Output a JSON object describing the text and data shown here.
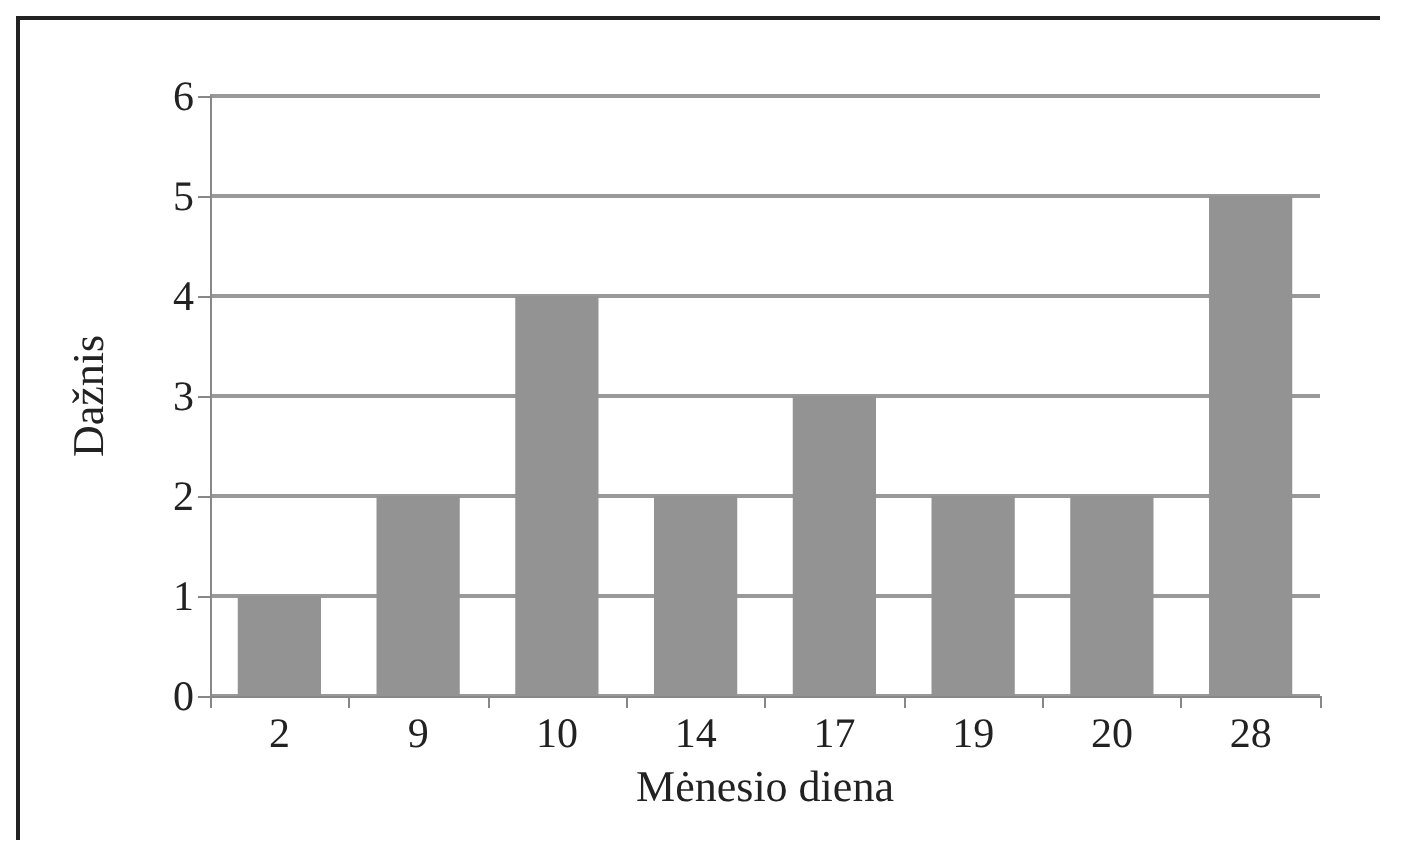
{
  "chart_data": {
    "type": "bar",
    "xlabel": "Mėnesio diena",
    "ylabel": "Dažnis",
    "categories": [
      "2",
      "9",
      "10",
      "14",
      "17",
      "19",
      "20",
      "28"
    ],
    "values": [
      1,
      2,
      4,
      2,
      3,
      2,
      2,
      5
    ],
    "color": "#939393",
    "ylim": [
      0,
      6
    ],
    "yticks": [
      0,
      1,
      2,
      3,
      4,
      5,
      6
    ],
    "grid": "y"
  }
}
